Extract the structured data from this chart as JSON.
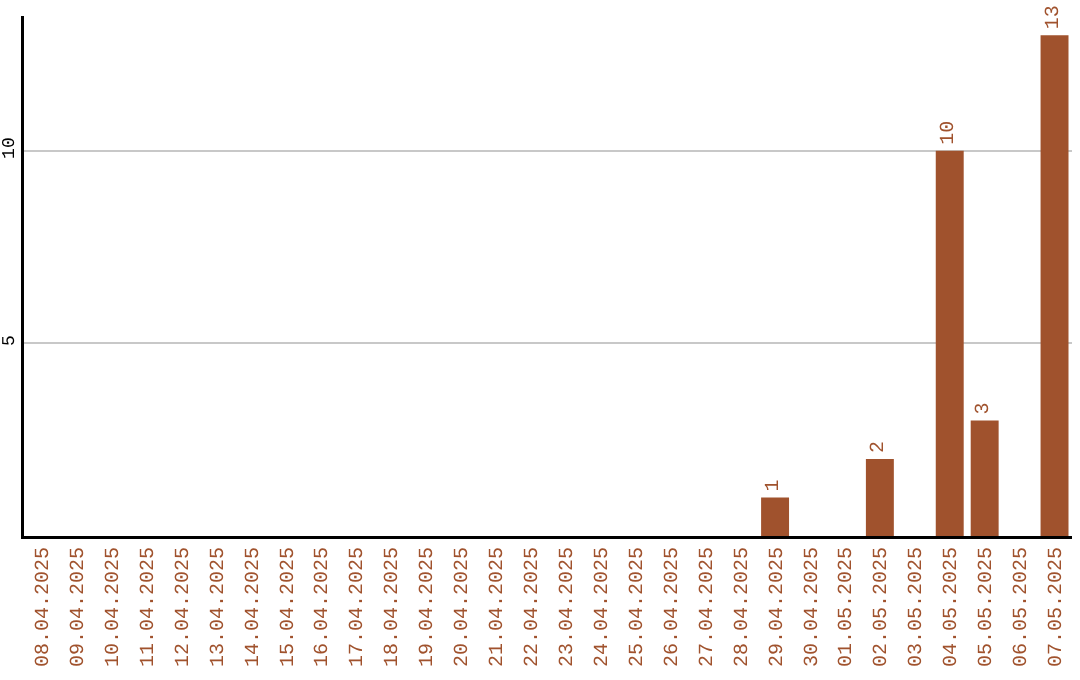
{
  "chart_data": {
    "type": "bar",
    "categories": [
      "08.04.2025",
      "09.04.2025",
      "10.04.2025",
      "11.04.2025",
      "12.04.2025",
      "13.04.2025",
      "14.04.2025",
      "15.04.2025",
      "16.04.2025",
      "17.04.2025",
      "18.04.2025",
      "19.04.2025",
      "20.04.2025",
      "21.04.2025",
      "22.04.2025",
      "23.04.2025",
      "24.04.2025",
      "25.04.2025",
      "26.04.2025",
      "27.04.2025",
      "28.04.2025",
      "29.04.2025",
      "30.04.2025",
      "01.05.2025",
      "02.05.2025",
      "03.05.2025",
      "04.05.2025",
      "05.05.2025",
      "06.05.2025",
      "07.05.2025"
    ],
    "values": [
      0,
      0,
      0,
      0,
      0,
      0,
      0,
      0,
      0,
      0,
      0,
      0,
      0,
      0,
      0,
      0,
      0,
      0,
      0,
      0,
      0,
      1,
      0,
      0,
      2,
      0,
      10,
      3,
      0,
      13
    ],
    "value_labels": [
      null,
      null,
      null,
      null,
      null,
      null,
      null,
      null,
      null,
      null,
      null,
      null,
      null,
      null,
      null,
      null,
      null,
      null,
      null,
      null,
      null,
      "1",
      null,
      null,
      "2",
      null,
      "10",
      "3",
      null,
      "13"
    ],
    "color": "#a0522d",
    "ylim": [
      0,
      13.5
    ],
    "yticks": [
      5,
      10
    ],
    "grid": "y"
  }
}
